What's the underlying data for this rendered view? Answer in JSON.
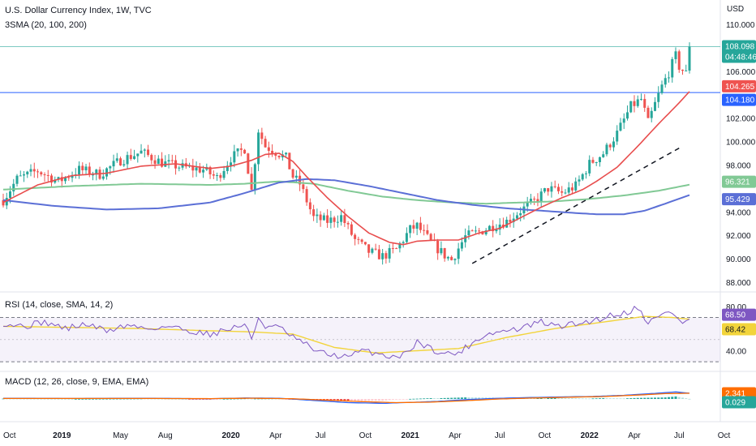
{
  "header": {
    "title": "U.S. Dollar Currency Index, 1W, TVC",
    "indicator": "3SMA (20, 100, 200)"
  },
  "colors": {
    "up": "#26a69a",
    "down": "#ef5350",
    "sma20": "#e84d4d",
    "sma100": "#81c995",
    "sma200": "#5b6fd6",
    "rsi": "#7e57c2",
    "rsi_ma": "#f2d43b",
    "macd": "#2962ff",
    "signal": "#ff6d00",
    "hline_blue": "#2962ff",
    "hline_teal": "#26a69a"
  },
  "chart_data": [
    {
      "type": "candlestick",
      "name": "price",
      "currency_label": "USD",
      "y_ticks": [
        "110.000",
        "106.000",
        "102.000",
        "100.000",
        "98.000",
        "94.000",
        "92.000",
        "90.000",
        "88.000"
      ],
      "ylim": [
        87.0,
        111.0
      ],
      "x_labels": [
        "Oct",
        "2019",
        "May",
        "Aug",
        "2020",
        "Apr",
        "Jul",
        "Oct",
        "2021",
        "Apr",
        "Jul",
        "Oct",
        "2022",
        "Apr",
        "Jul",
        "Oct"
      ],
      "x_label_bold": [
        "2019",
        "2020",
        "2021",
        "2022"
      ],
      "anchors": [
        [
          0,
          95.0
        ],
        [
          4,
          96.8
        ],
        [
          10,
          97.5
        ],
        [
          16,
          96.6
        ],
        [
          22,
          97.6
        ],
        [
          28,
          97.2
        ],
        [
          34,
          98.4
        ],
        [
          40,
          99.1
        ],
        [
          46,
          98.2
        ],
        [
          52,
          97.8
        ],
        [
          58,
          97.6
        ],
        [
          62,
          96.9
        ],
        [
          66,
          98.6
        ],
        [
          70,
          99.4
        ],
        [
          72,
          95.8
        ],
        [
          74,
          101.0
        ],
        [
          76,
          99.6
        ],
        [
          78,
          99.3
        ],
        [
          82,
          98.6
        ],
        [
          84,
          97.0
        ],
        [
          86,
          96.4
        ],
        [
          90,
          93.5
        ],
        [
          94,
          93.2
        ],
        [
          98,
          93.6
        ],
        [
          102,
          91.6
        ],
        [
          106,
          90.6
        ],
        [
          110,
          90.2
        ],
        [
          114,
          90.8
        ],
        [
          118,
          92.5
        ],
        [
          120,
          92.8
        ],
        [
          124,
          91.4
        ],
        [
          128,
          90.3
        ],
        [
          130,
          89.9
        ],
        [
          134,
          91.9
        ],
        [
          138,
          92.3
        ],
        [
          142,
          92.8
        ],
        [
          146,
          93.2
        ],
        [
          150,
          94.1
        ],
        [
          154,
          94.9
        ],
        [
          158,
          96.0
        ],
        [
          162,
          95.6
        ],
        [
          166,
          96.2
        ],
        [
          170,
          98.1
        ],
        [
          174,
          99.0
        ],
        [
          178,
          100.7
        ],
        [
          182,
          103.0
        ],
        [
          185,
          103.6
        ],
        [
          187,
          101.6
        ],
        [
          189,
          103.2
        ],
        [
          191,
          104.7
        ],
        [
          193,
          105.9
        ],
        [
          195,
          107.3
        ],
        [
          196,
          106.4
        ],
        [
          198,
          105.8
        ],
        [
          199,
          108.098
        ]
      ],
      "sma20": [
        [
          0,
          94.8
        ],
        [
          10,
          96.3
        ],
        [
          20,
          97.1
        ],
        [
          30,
          97.3
        ],
        [
          40,
          97.9
        ],
        [
          50,
          98.1
        ],
        [
          60,
          97.7
        ],
        [
          66,
          97.9
        ],
        [
          72,
          98.4
        ],
        [
          76,
          98.9
        ],
        [
          80,
          99.0
        ],
        [
          84,
          98.3
        ],
        [
          88,
          97.0
        ],
        [
          94,
          95.2
        ],
        [
          100,
          93.6
        ],
        [
          106,
          92.2
        ],
        [
          112,
          91.4
        ],
        [
          116,
          91.2
        ],
        [
          120,
          91.5
        ],
        [
          126,
          91.6
        ],
        [
          132,
          91.6
        ],
        [
          138,
          92.2
        ],
        [
          144,
          92.6
        ],
        [
          150,
          93.5
        ],
        [
          156,
          94.4
        ],
        [
          162,
          95.2
        ],
        [
          168,
          95.9
        ],
        [
          172,
          96.6
        ],
        [
          178,
          97.8
        ],
        [
          184,
          99.6
        ],
        [
          190,
          101.5
        ],
        [
          196,
          103.3
        ],
        [
          199,
          104.265
        ]
      ],
      "sma100": [
        [
          0,
          95.9
        ],
        [
          20,
          96.2
        ],
        [
          40,
          96.4
        ],
        [
          60,
          96.3
        ],
        [
          70,
          96.4
        ],
        [
          80,
          96.6
        ],
        [
          90,
          96.4
        ],
        [
          100,
          95.8
        ],
        [
          110,
          95.3
        ],
        [
          120,
          95.0
        ],
        [
          130,
          94.8
        ],
        [
          140,
          94.7
        ],
        [
          150,
          94.8
        ],
        [
          160,
          94.9
        ],
        [
          170,
          95.1
        ],
        [
          180,
          95.4
        ],
        [
          190,
          95.8
        ],
        [
          199,
          96.321
        ]
      ],
      "sma200": [
        [
          0,
          95.0
        ],
        [
          15,
          94.5
        ],
        [
          30,
          94.2
        ],
        [
          45,
          94.3
        ],
        [
          60,
          94.8
        ],
        [
          70,
          95.6
        ],
        [
          80,
          96.5
        ],
        [
          88,
          96.8
        ],
        [
          96,
          96.7
        ],
        [
          106,
          96.2
        ],
        [
          116,
          95.6
        ],
        [
          126,
          95.0
        ],
        [
          136,
          94.6
        ],
        [
          146,
          94.3
        ],
        [
          156,
          94.1
        ],
        [
          166,
          93.9
        ],
        [
          172,
          93.8
        ],
        [
          180,
          93.8
        ],
        [
          186,
          94.1
        ],
        [
          192,
          94.7
        ],
        [
          199,
          95.429
        ]
      ],
      "horizontal_lines": [
        104.18,
        108.098
      ],
      "trendline": {
        "from": [
          136,
          89.6
        ],
        "to": [
          197,
          99.6
        ]
      },
      "price_labels": [
        {
          "value": "108.098",
          "sub": "04:48:46",
          "color": "up",
          "y": 108.098
        },
        {
          "value": "104.265",
          "color": "down",
          "y": 104.265
        },
        {
          "value": "104.180",
          "color": "hline_blue",
          "y": 104.18
        },
        {
          "value": "96.321",
          "color": "sma100",
          "y": 96.321
        },
        {
          "value": "95.429",
          "color": "sma200",
          "y": 95.429
        }
      ]
    },
    {
      "type": "line",
      "name": "rsi",
      "title": "RSI (14, close, SMA, 14, 2)",
      "y_ticks": [
        "80.00",
        "40.00"
      ],
      "ylim": [
        25,
        85
      ],
      "band": [
        30,
        70
      ],
      "anchors": [
        [
          0,
          65
        ],
        [
          6,
          62
        ],
        [
          12,
          66
        ],
        [
          18,
          60
        ],
        [
          24,
          64
        ],
        [
          30,
          58
        ],
        [
          36,
          63
        ],
        [
          42,
          60
        ],
        [
          48,
          62
        ],
        [
          54,
          58
        ],
        [
          60,
          55
        ],
        [
          66,
          60
        ],
        [
          70,
          64
        ],
        [
          72,
          50
        ],
        [
          74,
          70
        ],
        [
          76,
          62
        ],
        [
          80,
          61
        ],
        [
          84,
          52
        ],
        [
          88,
          45
        ],
        [
          92,
          38
        ],
        [
          96,
          36
        ],
        [
          100,
          34
        ],
        [
          104,
          40
        ],
        [
          108,
          38
        ],
        [
          112,
          35
        ],
        [
          116,
          36
        ],
        [
          120,
          48
        ],
        [
          124,
          42
        ],
        [
          128,
          37
        ],
        [
          132,
          38
        ],
        [
          136,
          47
        ],
        [
          140,
          55
        ],
        [
          146,
          58
        ],
        [
          150,
          60
        ],
        [
          156,
          66
        ],
        [
          160,
          62
        ],
        [
          166,
          64
        ],
        [
          172,
          68
        ],
        [
          176,
          72
        ],
        [
          180,
          74
        ],
        [
          184,
          79
        ],
        [
          187,
          66
        ],
        [
          190,
          70
        ],
        [
          193,
          76
        ],
        [
          195,
          72
        ],
        [
          197,
          64
        ],
        [
          199,
          68.5
        ]
      ],
      "ma_anchors": [
        [
          0,
          62
        ],
        [
          20,
          61
        ],
        [
          40,
          60
        ],
        [
          60,
          58
        ],
        [
          72,
          57
        ],
        [
          84,
          55
        ],
        [
          96,
          43
        ],
        [
          108,
          38
        ],
        [
          120,
          40
        ],
        [
          132,
          42
        ],
        [
          146,
          52
        ],
        [
          160,
          60
        ],
        [
          172,
          65
        ],
        [
          186,
          71
        ],
        [
          194,
          70
        ],
        [
          199,
          68.42
        ]
      ],
      "labels": [
        {
          "value": "68.50",
          "color": "rsi",
          "y": 68.5
        },
        {
          "value": "68.42",
          "color": "rsi_ma",
          "y": 68.42
        }
      ]
    },
    {
      "type": "bar",
      "name": "macd",
      "title": "MACD (12, 26, close, 9, EMA, EMA)",
      "ylim": [
        -4.5,
        4.5
      ],
      "macd_anchors": [
        [
          0,
          0.3
        ],
        [
          20,
          0.2
        ],
        [
          40,
          0.3
        ],
        [
          60,
          0.1
        ],
        [
          70,
          0.4
        ],
        [
          80,
          0.3
        ],
        [
          90,
          -0.6
        ],
        [
          100,
          -1.5
        ],
        [
          110,
          -1.8
        ],
        [
          118,
          -1.4
        ],
        [
          126,
          -1.0
        ],
        [
          134,
          -0.3
        ],
        [
          142,
          0.2
        ],
        [
          150,
          0.5
        ],
        [
          160,
          0.8
        ],
        [
          170,
          1.0
        ],
        [
          180,
          1.5
        ],
        [
          190,
          2.4
        ],
        [
          195,
          2.9
        ],
        [
          199,
          2.37
        ]
      ],
      "signal_anchors": [
        [
          0,
          0.2
        ],
        [
          20,
          0.2
        ],
        [
          40,
          0.2
        ],
        [
          60,
          0.15
        ],
        [
          72,
          0.3
        ],
        [
          84,
          0.1
        ],
        [
          94,
          -0.5
        ],
        [
          104,
          -1.1
        ],
        [
          114,
          -1.5
        ],
        [
          124,
          -1.3
        ],
        [
          134,
          -0.7
        ],
        [
          144,
          0.0
        ],
        [
          154,
          0.4
        ],
        [
          164,
          0.7
        ],
        [
          174,
          1.0
        ],
        [
          184,
          1.6
        ],
        [
          192,
          2.2
        ],
        [
          199,
          2.341
        ]
      ],
      "labels": [
        {
          "value": "2.341",
          "color": "signal",
          "y": 2.341
        },
        {
          "value": "0.029",
          "color": "up",
          "y": 0.029
        }
      ]
    }
  ]
}
